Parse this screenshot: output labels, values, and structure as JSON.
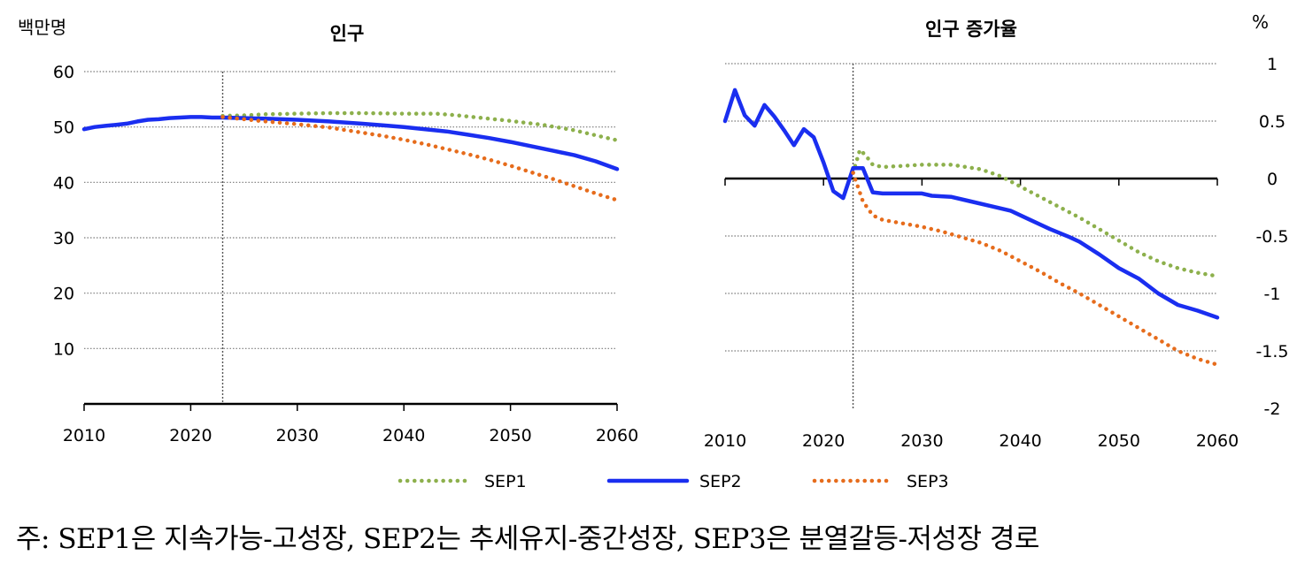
{
  "chart_data": [
    {
      "type": "line",
      "title": "인구",
      "unit": "백만명",
      "x_ticks": [
        "2010",
        "2020",
        "2030",
        "2040",
        "2050",
        "2060"
      ],
      "y_ticks": [
        "10",
        "20",
        "30",
        "40",
        "50",
        "60"
      ],
      "xlim": [
        2010,
        2060
      ],
      "ylim": [
        0,
        60
      ],
      "vline": 2023,
      "grid": true,
      "series": [
        {
          "name": "SEP1",
          "color": "#8db04c",
          "style": "dotted",
          "points": [
            [
              2023,
              52
            ],
            [
              2025,
              52.1
            ],
            [
              2027,
              52.3
            ],
            [
              2030,
              52.4
            ],
            [
              2033,
              52.5
            ],
            [
              2036,
              52.5
            ],
            [
              2040,
              52.4
            ],
            [
              2043,
              52.4
            ],
            [
              2045,
              52.1
            ],
            [
              2048,
              51.5
            ],
            [
              2050,
              51.1
            ],
            [
              2053,
              50.4
            ],
            [
              2056,
              49.4
            ],
            [
              2058,
              48.5
            ],
            [
              2060,
              47.6
            ]
          ]
        },
        {
          "name": "SEP2",
          "color": "#1a2ef0",
          "style": "solid",
          "points": [
            [
              2010,
              49.6
            ],
            [
              2011,
              50.0
            ],
            [
              2012,
              50.2
            ],
            [
              2013,
              50.4
            ],
            [
              2014,
              50.6
            ],
            [
              2015,
              51.0
            ],
            [
              2016,
              51.3
            ],
            [
              2017,
              51.4
            ],
            [
              2018,
              51.6
            ],
            [
              2019,
              51.7
            ],
            [
              2020,
              51.8
            ],
            [
              2021,
              51.8
            ],
            [
              2022,
              51.7
            ],
            [
              2023,
              51.7
            ],
            [
              2025,
              51.6
            ],
            [
              2027,
              51.5
            ],
            [
              2030,
              51.3
            ],
            [
              2033,
              51.0
            ],
            [
              2036,
              50.6
            ],
            [
              2038,
              50.3
            ],
            [
              2040,
              50.0
            ],
            [
              2042,
              49.6
            ],
            [
              2044,
              49.2
            ],
            [
              2046,
              48.6
            ],
            [
              2048,
              48.0
            ],
            [
              2050,
              47.3
            ],
            [
              2052,
              46.5
            ],
            [
              2054,
              45.7
            ],
            [
              2056,
              44.9
            ],
            [
              2058,
              43.8
            ],
            [
              2060,
              42.4
            ]
          ]
        },
        {
          "name": "SEP3",
          "color": "#e66c1c",
          "style": "dotted",
          "points": [
            [
              2023,
              51.8
            ],
            [
              2025,
              51.4
            ],
            [
              2027,
              51.0
            ],
            [
              2030,
              50.5
            ],
            [
              2033,
              49.9
            ],
            [
              2036,
              49.0
            ],
            [
              2038,
              48.4
            ],
            [
              2040,
              47.7
            ],
            [
              2042,
              46.9
            ],
            [
              2044,
              46.0
            ],
            [
              2046,
              45.1
            ],
            [
              2048,
              44.1
            ],
            [
              2050,
              43.0
            ],
            [
              2052,
              41.8
            ],
            [
              2054,
              40.6
            ],
            [
              2056,
              39.3
            ],
            [
              2058,
              38.0
            ],
            [
              2060,
              36.8
            ]
          ]
        }
      ]
    },
    {
      "type": "line",
      "title": "인구 증가율",
      "unit": "%",
      "x_ticks": [
        "2010",
        "2020",
        "2030",
        "2040",
        "2050",
        "2060"
      ],
      "y_ticks": [
        "1",
        "0.5",
        "0",
        "-0.5",
        "-1",
        "-1.5",
        "-2"
      ],
      "xlim": [
        2010,
        2060
      ],
      "ylim": [
        -2,
        1
      ],
      "vline": 2023,
      "grid": true,
      "series": [
        {
          "name": "SEP1",
          "color": "#8db04c",
          "style": "dotted",
          "points": [
            [
              2023,
              0.05
            ],
            [
              2023.7,
              0.25
            ],
            [
              2024.3,
              0.2
            ],
            [
              2025,
              0.12
            ],
            [
              2026,
              0.1
            ],
            [
              2028,
              0.11
            ],
            [
              2030,
              0.12
            ],
            [
              2033,
              0.12
            ],
            [
              2036,
              0.08
            ],
            [
              2038,
              0.02
            ],
            [
              2040,
              -0.07
            ],
            [
              2042,
              -0.16
            ],
            [
              2044,
              -0.25
            ],
            [
              2046,
              -0.34
            ],
            [
              2048,
              -0.44
            ],
            [
              2050,
              -0.54
            ],
            [
              2052,
              -0.64
            ],
            [
              2054,
              -0.72
            ],
            [
              2056,
              -0.78
            ],
            [
              2058,
              -0.82
            ],
            [
              2060,
              -0.85
            ]
          ]
        },
        {
          "name": "SEP2",
          "color": "#1a2ef0",
          "style": "solid",
          "points": [
            [
              2010,
              0.5
            ],
            [
              2011,
              0.77
            ],
            [
              2012,
              0.55
            ],
            [
              2013,
              0.46
            ],
            [
              2014,
              0.64
            ],
            [
              2015,
              0.54
            ],
            [
              2016,
              0.42
            ],
            [
              2017,
              0.29
            ],
            [
              2018,
              0.43
            ],
            [
              2019,
              0.36
            ],
            [
              2020,
              0.14
            ],
            [
              2021,
              -0.11
            ],
            [
              2022,
              -0.17
            ],
            [
              2023,
              0.09
            ],
            [
              2024,
              0.09
            ],
            [
              2025,
              -0.12
            ],
            [
              2026,
              -0.13
            ],
            [
              2028,
              -0.13
            ],
            [
              2030,
              -0.13
            ],
            [
              2031,
              -0.15
            ],
            [
              2033,
              -0.16
            ],
            [
              2035,
              -0.2
            ],
            [
              2037,
              -0.24
            ],
            [
              2039,
              -0.28
            ],
            [
              2041,
              -0.36
            ],
            [
              2043,
              -0.44
            ],
            [
              2045,
              -0.51
            ],
            [
              2046,
              -0.55
            ],
            [
              2048,
              -0.66
            ],
            [
              2050,
              -0.78
            ],
            [
              2052,
              -0.87
            ],
            [
              2054,
              -1.0
            ],
            [
              2056,
              -1.1
            ],
            [
              2058,
              -1.15
            ],
            [
              2060,
              -1.21
            ]
          ]
        },
        {
          "name": "SEP3",
          "color": "#e66c1c",
          "style": "dotted",
          "points": [
            [
              2023,
              0.05
            ],
            [
              2024,
              -0.2
            ],
            [
              2025,
              -0.32
            ],
            [
              2026,
              -0.36
            ],
            [
              2028,
              -0.39
            ],
            [
              2030,
              -0.42
            ],
            [
              2032,
              -0.46
            ],
            [
              2034,
              -0.51
            ],
            [
              2036,
              -0.56
            ],
            [
              2038,
              -0.63
            ],
            [
              2040,
              -0.72
            ],
            [
              2042,
              -0.81
            ],
            [
              2044,
              -0.91
            ],
            [
              2046,
              -1.0
            ],
            [
              2048,
              -1.1
            ],
            [
              2050,
              -1.2
            ],
            [
              2052,
              -1.3
            ],
            [
              2054,
              -1.4
            ],
            [
              2056,
              -1.5
            ],
            [
              2058,
              -1.57
            ],
            [
              2060,
              -1.62
            ]
          ]
        }
      ]
    }
  ],
  "legend": [
    "SEP1",
    "SEP2",
    "SEP3"
  ],
  "note": "주: SEP1은 지속가능-고성장, SEP2는 추세유지-중간성장, SEP3은 분열갈등-저성장 경로"
}
